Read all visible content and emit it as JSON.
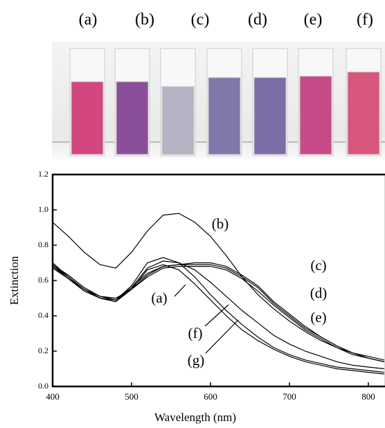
{
  "photo": {
    "labels": [
      "(a)",
      "(b)",
      "(c)",
      "(d)",
      "(e)",
      "(f)"
    ]
  },
  "chart_data": {
    "type": "line",
    "x_label": "Wavelength (nm)",
    "y_label": "Extinction",
    "x": [
      400,
      420,
      440,
      460,
      480,
      500,
      520,
      540,
      560,
      580,
      600,
      620,
      640,
      660,
      680,
      700,
      720,
      740,
      760,
      780,
      800,
      820
    ],
    "series": [
      {
        "name": "(a)",
        "color": "#000000",
        "values": [
          0.69,
          0.62,
          0.55,
          0.5,
          0.49,
          0.57,
          0.7,
          0.73,
          0.7,
          0.62,
          0.52,
          0.43,
          0.35,
          0.28,
          0.22,
          0.18,
          0.15,
          0.13,
          0.11,
          0.1,
          0.09,
          0.08
        ]
      },
      {
        "name": "(b)",
        "color": "#000000",
        "values": [
          0.93,
          0.85,
          0.76,
          0.69,
          0.67,
          0.76,
          0.88,
          0.97,
          0.98,
          0.93,
          0.85,
          0.74,
          0.62,
          0.52,
          0.44,
          0.37,
          0.31,
          0.26,
          0.22,
          0.19,
          0.17,
          0.15
        ]
      },
      {
        "name": "(c)",
        "color": "#000000",
        "values": [
          0.68,
          0.62,
          0.55,
          0.51,
          0.49,
          0.56,
          0.64,
          0.68,
          0.69,
          0.7,
          0.7,
          0.68,
          0.63,
          0.57,
          0.48,
          0.41,
          0.34,
          0.28,
          0.23,
          0.19,
          0.16,
          0.14
        ]
      },
      {
        "name": "(d)",
        "color": "#000000",
        "values": [
          0.69,
          0.63,
          0.56,
          0.51,
          0.49,
          0.55,
          0.63,
          0.68,
          0.69,
          0.69,
          0.69,
          0.67,
          0.62,
          0.56,
          0.47,
          0.4,
          0.33,
          0.28,
          0.23,
          0.19,
          0.16,
          0.14
        ]
      },
      {
        "name": "(e)",
        "color": "#000000",
        "values": [
          0.67,
          0.61,
          0.55,
          0.51,
          0.5,
          0.55,
          0.62,
          0.67,
          0.68,
          0.68,
          0.68,
          0.66,
          0.61,
          0.54,
          0.46,
          0.39,
          0.32,
          0.27,
          0.22,
          0.18,
          0.16,
          0.14
        ]
      },
      {
        "name": "(f)",
        "color": "#000000",
        "values": [
          0.68,
          0.61,
          0.54,
          0.5,
          0.48,
          0.56,
          0.67,
          0.71,
          0.7,
          0.66,
          0.59,
          0.51,
          0.43,
          0.36,
          0.29,
          0.24,
          0.2,
          0.17,
          0.14,
          0.12,
          0.11,
          0.1
        ]
      },
      {
        "name": "(g)",
        "color": "#000000",
        "values": [
          0.7,
          0.62,
          0.55,
          0.5,
          0.48,
          0.55,
          0.66,
          0.69,
          0.66,
          0.58,
          0.49,
          0.4,
          0.32,
          0.26,
          0.21,
          0.17,
          0.14,
          0.12,
          0.1,
          0.09,
          0.08,
          0.07
        ]
      }
    ],
    "xlim": [
      400,
      822
    ],
    "ylim": [
      0,
      1.2
    ],
    "xticks": [
      400,
      500,
      600,
      700,
      800
    ],
    "yticks": [
      {
        "value": 0,
        "label": "0.0"
      },
      {
        "value": 0.2,
        "label": "0.2"
      },
      {
        "value": 0.4,
        "label": "0.4"
      },
      {
        "value": 0.6,
        "label": "0.6"
      },
      {
        "value": 0.8,
        "label": "0.8"
      },
      {
        "value": 1,
        "label": "1.0"
      },
      {
        "value": 1.2,
        "label": "1.2"
      }
    ]
  }
}
